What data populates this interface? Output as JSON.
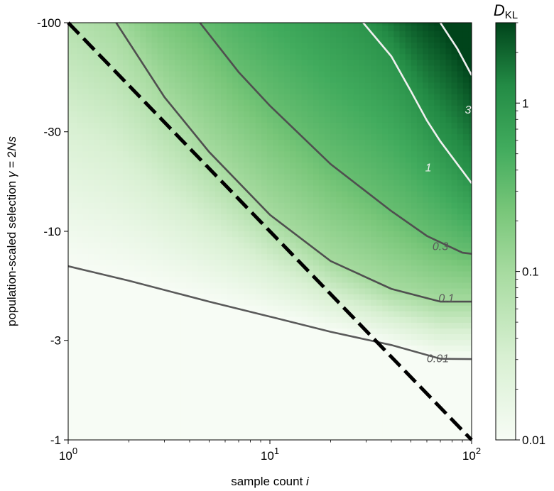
{
  "chart_data": {
    "type": "heatmap",
    "title": "",
    "xlabel": {
      "text": "sample count ",
      "italic": "i"
    },
    "ylabel": {
      "text": "population-scaled selection ",
      "italic_gamma": "γ",
      "equals": " = 2",
      "italic_Ns": "Ns"
    },
    "x_scale": "log",
    "y_scale": "log",
    "xlim": [
      1,
      100
    ],
    "ylim": [
      -1,
      -100
    ],
    "x_ticks": [
      {
        "value": 1,
        "base": "10",
        "exp": "0"
      },
      {
        "value": 10,
        "base": "10",
        "exp": "1"
      },
      {
        "value": 100,
        "base": "10",
        "exp": "2"
      }
    ],
    "y_ticks": [
      {
        "value": -100,
        "label": "-100"
      },
      {
        "value": -30,
        "label": "-30"
      },
      {
        "value": -10,
        "label": "-10"
      },
      {
        "value": -3,
        "label": "-3"
      },
      {
        "value": -1,
        "label": "-1"
      }
    ],
    "colorbar": {
      "label_main": "D",
      "label_sub": "KL",
      "scale": "log",
      "range": [
        0.01,
        3
      ],
      "colormap": "Greens",
      "ticks": [
        {
          "value": 1,
          "label": "1"
        },
        {
          "value": 0.1,
          "label": "0.1"
        },
        {
          "value": 0.01,
          "label": "0.01"
        }
      ]
    },
    "contours": [
      {
        "level": 0.01,
        "label": "0.01",
        "color": "#5a5a5a",
        "points": [
          [
            1,
            -6.8
          ],
          [
            2,
            -5.8
          ],
          [
            5,
            -4.6
          ],
          [
            10,
            -3.9
          ],
          [
            20,
            -3.3
          ],
          [
            40,
            -2.85
          ],
          [
            70,
            -2.45
          ],
          [
            100,
            -2.44
          ]
        ],
        "label_at": [
          68,
          -2.44
        ]
      },
      {
        "level": 0.1,
        "label": "0.1",
        "color": "#4f4f4f",
        "points": [
          [
            1.73,
            -100
          ],
          [
            3,
            -44
          ],
          [
            5,
            -24
          ],
          [
            10,
            -12
          ],
          [
            20,
            -7.2
          ],
          [
            40,
            -5.3
          ],
          [
            70,
            -4.6
          ],
          [
            100,
            -4.6
          ]
        ],
        "label_at": [
          75,
          -4.75
        ]
      },
      {
        "level": 0.3,
        "label": "0.3",
        "color": "#4f4f4f",
        "points": [
          [
            4.5,
            -100
          ],
          [
            7,
            -58
          ],
          [
            10,
            -40
          ],
          [
            20,
            -21
          ],
          [
            40,
            -12.5
          ],
          [
            60,
            -9.5
          ],
          [
            90,
            -7.9
          ],
          [
            100,
            -7.8
          ]
        ],
        "label_at": [
          70,
          -8.4
        ]
      },
      {
        "level": 1,
        "label": "1",
        "color": "#f0f0f0",
        "points": [
          [
            29,
            -100
          ],
          [
            40,
            -69
          ],
          [
            50,
            -47
          ],
          [
            60,
            -34
          ],
          [
            70,
            -27
          ],
          [
            100,
            -17
          ]
        ],
        "label_at": [
          61,
          -20
        ]
      },
      {
        "level": 3,
        "label": "3",
        "color": "#f0f0f0",
        "points": [
          [
            70,
            -100
          ],
          [
            85,
            -75
          ],
          [
            100,
            -56
          ]
        ],
        "label_at": [
          96,
          -38
        ]
      }
    ],
    "reference_line": {
      "style": "dashed",
      "color": "#000000",
      "points": [
        [
          1,
          -100
        ],
        [
          100,
          -1
        ]
      ]
    },
    "grid": false
  }
}
